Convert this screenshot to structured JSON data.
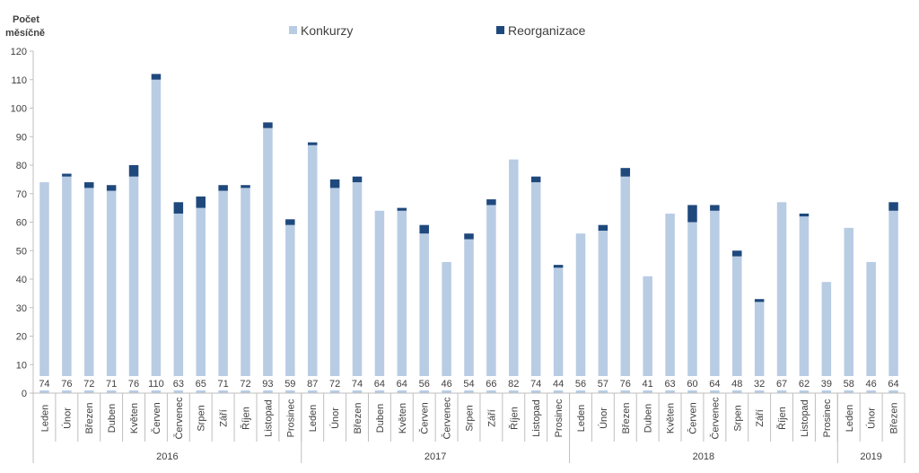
{
  "chart_data": {
    "type": "bar",
    "stacked": true,
    "ylabel_line1": "Počet",
    "ylabel_line2": "měsíčně",
    "ylim": [
      0,
      120
    ],
    "yticks": [
      0,
      10,
      20,
      30,
      40,
      50,
      60,
      70,
      80,
      90,
      100,
      110,
      120
    ],
    "grid": false,
    "legend_position": "top",
    "categories": [
      "Leden",
      "Únor",
      "Březen",
      "Duben",
      "Květen",
      "Červen",
      "Červenec",
      "Srpen",
      "Září",
      "Říjen",
      "Listopad",
      "Prosinec",
      "Leden",
      "Únor",
      "Březen",
      "Duben",
      "Květen",
      "Červen",
      "Červenec",
      "Srpen",
      "Září",
      "Říjen",
      "Listopad",
      "Prosinec",
      "Leden",
      "Únor",
      "Březen",
      "Duben",
      "Květen",
      "Červen",
      "Červenec",
      "Srpen",
      "Září",
      "Říjen",
      "Listopad",
      "Prosinec",
      "Leden",
      "Únor",
      "Březen"
    ],
    "year_groups": [
      {
        "label": "2016",
        "count": 12
      },
      {
        "label": "2017",
        "count": 12
      },
      {
        "label": "2018",
        "count": 12
      },
      {
        "label": "2019",
        "count": 3
      }
    ],
    "series": [
      {
        "name": "Konkurzy",
        "color": "#b8cce4",
        "values": [
          74,
          76,
          72,
          71,
          76,
          110,
          63,
          65,
          71,
          72,
          93,
          59,
          87,
          72,
          74,
          64,
          64,
          56,
          46,
          54,
          66,
          82,
          74,
          44,
          56,
          57,
          76,
          41,
          63,
          60,
          64,
          48,
          32,
          67,
          62,
          39,
          58,
          46,
          64
        ]
      },
      {
        "name": "Reorganizace",
        "color": "#1f497d",
        "values": [
          0,
          1,
          2,
          2,
          4,
          2,
          4,
          4,
          2,
          1,
          2,
          2,
          1,
          3,
          2,
          0,
          1,
          3,
          0,
          2,
          2,
          0,
          2,
          1,
          0,
          2,
          3,
          0,
          0,
          6,
          2,
          2,
          1,
          0,
          1,
          0,
          0,
          0,
          3
        ]
      }
    ]
  }
}
